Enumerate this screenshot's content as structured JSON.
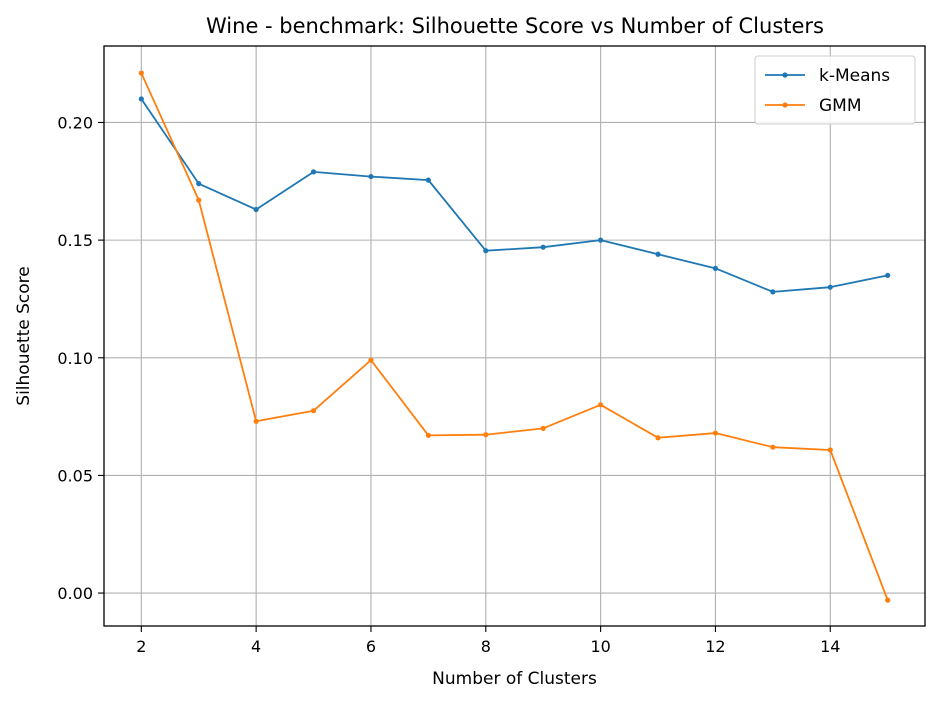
{
  "chart_data": {
    "type": "line",
    "title": "Wine - benchmark: Silhouette Score vs Number of Clusters",
    "xlabel": "Number of Clusters",
    "ylabel": "Silhouette Score",
    "x": [
      2,
      3,
      4,
      5,
      6,
      7,
      8,
      9,
      10,
      11,
      12,
      13,
      14,
      15
    ],
    "xlim": [
      1.35,
      15.65
    ],
    "ylim": [
      -0.014,
      0.2325
    ],
    "xticks": [
      2,
      4,
      6,
      8,
      10,
      12,
      14
    ],
    "yticks": [
      0.0,
      0.05,
      0.1,
      0.15,
      0.2
    ],
    "xtick_labels": [
      "2",
      "4",
      "6",
      "8",
      "10",
      "12",
      "14"
    ],
    "ytick_labels": [
      "0.00",
      "0.05",
      "0.10",
      "0.15",
      "0.20"
    ],
    "grid": true,
    "legend_position": "top-right",
    "series": [
      {
        "name": "k-Means",
        "color": "#1f77b4",
        "values": [
          0.21,
          0.174,
          0.163,
          0.179,
          0.177,
          0.1755,
          0.1455,
          0.147,
          0.15,
          0.144,
          0.138,
          0.128,
          0.13,
          0.135
        ]
      },
      {
        "name": "GMM",
        "color": "#ff7f0e",
        "values": [
          0.221,
          0.167,
          0.073,
          0.0775,
          0.099,
          0.067,
          0.0673,
          0.07,
          0.08,
          0.066,
          0.068,
          0.062,
          0.0608,
          -0.003
        ]
      }
    ]
  }
}
